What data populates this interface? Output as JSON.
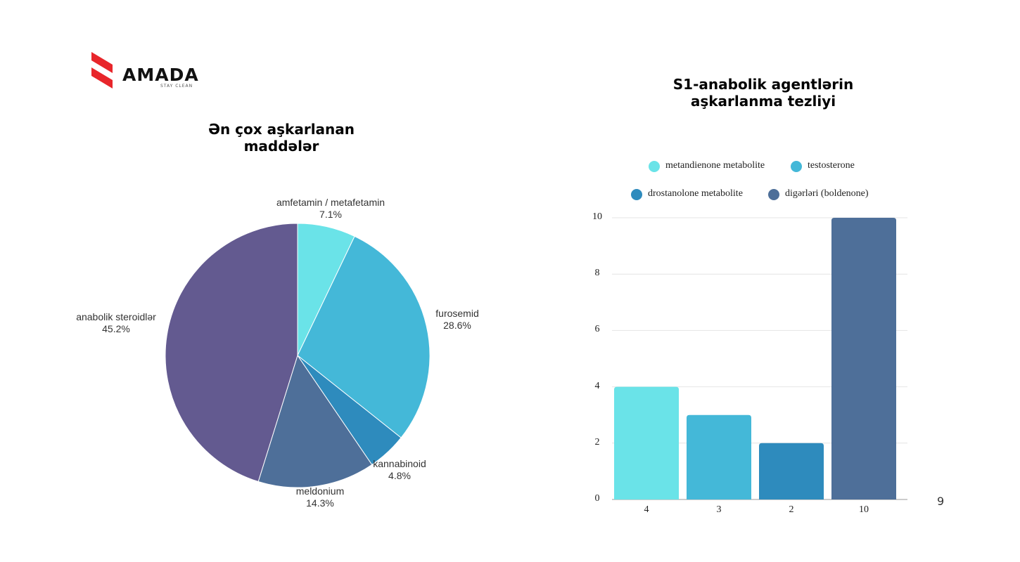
{
  "logo": {
    "name": "AMADA",
    "tagline": "STAY CLEAN",
    "color": "#e8262b"
  },
  "page_number": "9",
  "chart_data": [
    {
      "type": "pie",
      "title": "Ən çox aşkarlanan maddələr",
      "slices": [
        {
          "label": "amfetamin / metafetamin",
          "value": 7.1,
          "pct": "7.1%",
          "color": "#6ae3e8"
        },
        {
          "label": "furosemid",
          "value": 28.6,
          "pct": "28.6%",
          "color": "#44b8d8"
        },
        {
          "label": "kannabinoid",
          "value": 4.8,
          "pct": "4.8%",
          "color": "#2e8bbd"
        },
        {
          "label": "meldonium",
          "value": 14.3,
          "pct": "14.3%",
          "color": "#4e6f99"
        },
        {
          "label": "anabolik steroidlər",
          "value": 45.2,
          "pct": "45.2%",
          "color": "#635a90"
        }
      ]
    },
    {
      "type": "bar",
      "title": "S1-anabolik agentlərin aşkarlanma tezliyi",
      "categories": [
        "4",
        "3",
        "2",
        "10"
      ],
      "series": [
        {
          "name": "metandienone metabolite",
          "value": 4,
          "color": "#6ae3e8"
        },
        {
          "name": "testosterone",
          "value": 3,
          "color": "#44b8d8"
        },
        {
          "name": "drostanolone metabolite",
          "value": 2,
          "color": "#2e8bbd"
        },
        {
          "name": "digərləri (boldenone)",
          "value": 10,
          "color": "#4e6f99"
        }
      ],
      "yticks": [
        "0",
        "2",
        "4",
        "6",
        "8",
        "10"
      ],
      "ylim": [
        0,
        10
      ],
      "grid": true,
      "legend": "top"
    }
  ]
}
